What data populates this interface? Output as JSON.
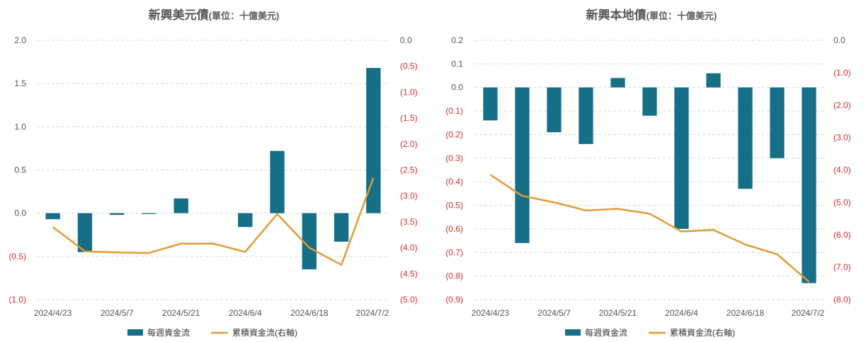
{
  "colors": {
    "bar": "#156f87",
    "line": "#e39a35",
    "negative_tick": "#d32f2f",
    "tick": "#555555",
    "title": "#595959",
    "grid": "#d9d9d9"
  },
  "chart_data": [
    {
      "type": "bar",
      "title": "新興美元債",
      "subtitle": "(單位：十億美元)",
      "x": [
        "2024/4/23",
        "2024/4/30",
        "2024/5/7",
        "2024/5/14",
        "2024/5/21",
        "2024/5/28",
        "2024/6/4",
        "2024/6/11",
        "2024/6/18",
        "2024/6/25",
        "2024/7/2"
      ],
      "x_tick_labels": [
        "2024/4/23",
        "2024/5/7",
        "2024/5/21",
        "2024/6/4",
        "2024/6/18",
        "2024/7/2"
      ],
      "y_left_ticks": [
        "2.0",
        "1.5",
        "1.0",
        "0.5",
        "0.0",
        "(0.5)",
        "(1.0)"
      ],
      "y_right_ticks": [
        "0.0",
        "(0.5)",
        "(1.0)",
        "(1.5)",
        "(2.0)",
        "(2.5)",
        "(3.0)",
        "(3.5)",
        "(4.0)",
        "(4.5)",
        "(5.0)"
      ],
      "ylim_left": [
        -1.0,
        2.0
      ],
      "ylim_right": [
        -5.0,
        0.0
      ],
      "grid": true,
      "legend_position": "bottom",
      "series": [
        {
          "name": "每週資金流",
          "type": "bar",
          "axis": "left",
          "values": [
            -0.07,
            -0.45,
            -0.02,
            -0.01,
            0.17,
            0.0,
            -0.16,
            0.72,
            -0.65,
            -0.33,
            1.68
          ]
        },
        {
          "name": "累積資金流(右軸)",
          "type": "line",
          "axis": "right",
          "values": [
            -3.6,
            -4.07,
            -4.09,
            -4.1,
            -3.92,
            -3.92,
            -4.08,
            -3.35,
            -4.0,
            -4.33,
            -2.65
          ]
        }
      ]
    },
    {
      "type": "bar",
      "title": "新興本地債",
      "subtitle": "(單位：十億美元)",
      "x": [
        "2024/4/23",
        "2024/4/30",
        "2024/5/7",
        "2024/5/14",
        "2024/5/21",
        "2024/5/28",
        "2024/6/4",
        "2024/6/11",
        "2024/6/18",
        "2024/6/25",
        "2024/7/2"
      ],
      "x_tick_labels": [
        "2024/4/23",
        "2024/5/7",
        "2024/5/21",
        "2024/6/4",
        "2024/6/18",
        "2024/7/2"
      ],
      "y_left_ticks": [
        "0.2",
        "0.1",
        "0.0",
        "(0.1)",
        "(0.2)",
        "(0.3)",
        "(0.4)",
        "(0.5)",
        "(0.6)",
        "(0.7)",
        "(0.8)",
        "(0.9)"
      ],
      "y_right_ticks": [
        "0.0",
        "(1.0)",
        "(2.0)",
        "(3.0)",
        "(4.0)",
        "(5.0)",
        "(6.0)",
        "(7.0)",
        "(8.0)"
      ],
      "ylim_left": [
        -0.9,
        0.2
      ],
      "ylim_right": [
        -8.0,
        0.0
      ],
      "grid": true,
      "legend_position": "bottom",
      "series": [
        {
          "name": "每週資金流",
          "type": "bar",
          "axis": "left",
          "values": [
            -0.14,
            -0.66,
            -0.19,
            -0.24,
            0.04,
            -0.12,
            -0.6,
            0.06,
            -0.43,
            -0.3,
            -0.83
          ]
        },
        {
          "name": "累積資金流(右軸)",
          "type": "line",
          "axis": "right",
          "values": [
            -4.15,
            -4.8,
            -5.0,
            -5.25,
            -5.2,
            -5.35,
            -5.9,
            -5.85,
            -6.3,
            -6.6,
            -7.45
          ]
        }
      ]
    }
  ]
}
